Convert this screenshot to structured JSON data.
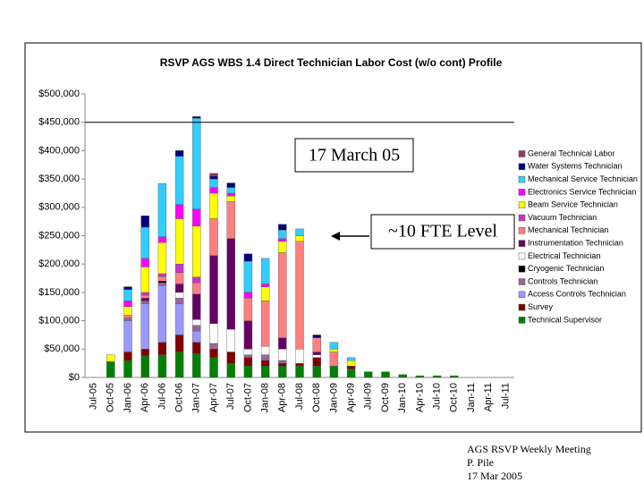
{
  "chart_data": {
    "type": "stacked_bar",
    "title": "RSVP AGS WBS 1.4 Direct Technician Labor Cost (w/o cont) Profile",
    "categories": [
      "Jul-05",
      "Oct-05",
      "Jan-06",
      "Apr-06",
      "Jul-06",
      "Oct-06",
      "Jan-07",
      "Apr-07",
      "Jul-07",
      "Oct-07",
      "Jan-08",
      "Apr-08",
      "Jul-08",
      "Oct-08",
      "Jan-09",
      "Apr-09",
      "Jul-09",
      "Oct-09",
      "Jan-10",
      "Apr-10",
      "Jul-10",
      "Oct-10",
      "Jan-11",
      "Apr-11",
      "Jul-11"
    ],
    "series": [
      {
        "name": "General Technical Labor",
        "color": "#993366",
        "values": [
          0,
          0,
          0,
          0,
          0,
          0,
          0,
          5000,
          0,
          0,
          0,
          0,
          0,
          0,
          0,
          0,
          0,
          0,
          0,
          0,
          0,
          0,
          0,
          0,
          0
        ]
      },
      {
        "name": "Water Systems Technician",
        "color": "#000080",
        "values": [
          0,
          0,
          5000,
          20000,
          0,
          10000,
          3000,
          5000,
          8000,
          13000,
          0,
          10000,
          0,
          5000,
          0,
          0,
          0,
          0,
          0,
          0,
          0,
          0,
          0,
          0,
          0
        ]
      },
      {
        "name": "Mechanical Service Technician",
        "color": "#33ccff",
        "values": [
          0,
          0,
          20000,
          55000,
          94000,
          85000,
          160000,
          15000,
          10000,
          55000,
          45000,
          15000,
          12000,
          0,
          12000,
          5000,
          0,
          0,
          0,
          0,
          0,
          0,
          0,
          0,
          0
        ]
      },
      {
        "name": "Electronics Service Technician",
        "color": "#ff00ff",
        "values": [
          0,
          0,
          10000,
          15000,
          10000,
          25000,
          30000,
          10000,
          5000,
          10000,
          5000,
          5000,
          0,
          0,
          0,
          0,
          0,
          0,
          0,
          0,
          0,
          0,
          0,
          0,
          0
        ]
      },
      {
        "name": "Beam Service Technician",
        "color": "#ffff00",
        "values": [
          0,
          12000,
          15000,
          45000,
          55000,
          80000,
          90000,
          45000,
          10000,
          0,
          25000,
          20000,
          10000,
          0,
          5000,
          10000,
          0,
          0,
          0,
          0,
          0,
          0,
          0,
          0,
          0
        ]
      },
      {
        "name": "Vacuum Technician",
        "color": "#cc33cc",
        "values": [
          0,
          0,
          0,
          5000,
          5000,
          15000,
          10000,
          0,
          0,
          0,
          0,
          0,
          0,
          0,
          0,
          0,
          0,
          0,
          0,
          0,
          0,
          0,
          0,
          0,
          0
        ]
      },
      {
        "name": "Mechanical Technician",
        "color": "#ff8080",
        "values": [
          0,
          0,
          5000,
          5000,
          8000,
          20000,
          20000,
          65000,
          65000,
          40000,
          80000,
          150000,
          190000,
          25000,
          25000,
          0,
          0,
          0,
          0,
          0,
          0,
          0,
          0,
          0,
          0
        ]
      },
      {
        "name": "Instrumentation Technician",
        "color": "#660066",
        "values": [
          0,
          0,
          0,
          5000,
          0,
          15000,
          45000,
          120000,
          160000,
          50000,
          0,
          20000,
          0,
          5000,
          0,
          0,
          0,
          0,
          0,
          0,
          0,
          0,
          0,
          0,
          0
        ]
      },
      {
        "name": "Electrical Technician",
        "color": "#ffffff",
        "values": [
          0,
          0,
          0,
          0,
          0,
          10000,
          10000,
          35000,
          40000,
          10000,
          15000,
          20000,
          25000,
          5000,
          0,
          0,
          0,
          0,
          0,
          0,
          0,
          0,
          0,
          0,
          0
        ]
      },
      {
        "name": "Cryogenic Technician",
        "color": "#000000",
        "values": [
          0,
          0,
          0,
          0,
          3000,
          0,
          0,
          0,
          0,
          0,
          0,
          0,
          0,
          0,
          0,
          0,
          0,
          0,
          0,
          0,
          0,
          0,
          0,
          0,
          0
        ]
      },
      {
        "name": "Controls Technician",
        "color": "#996699",
        "values": [
          0,
          0,
          5000,
          5000,
          5000,
          10000,
          10000,
          10000,
          0,
          5000,
          10000,
          5000,
          0,
          0,
          0,
          0,
          0,
          0,
          0,
          0,
          0,
          0,
          0,
          0,
          0
        ]
      },
      {
        "name": "Access Controls Technician",
        "color": "#9999ff",
        "values": [
          0,
          0,
          55000,
          80000,
          100000,
          55000,
          20000,
          0,
          0,
          0,
          0,
          0,
          0,
          0,
          0,
          0,
          0,
          0,
          0,
          0,
          0,
          0,
          0,
          0,
          0
        ]
      },
      {
        "name": "Survey",
        "color": "#800000",
        "values": [
          0,
          0,
          15000,
          12000,
          22000,
          30000,
          20000,
          15000,
          20000,
          15000,
          10000,
          5000,
          5000,
          15000,
          0,
          5000,
          0,
          0,
          0,
          0,
          0,
          0,
          0,
          0,
          0
        ]
      },
      {
        "name": "Technical Supervisor",
        "color": "#008000",
        "values": [
          0,
          28000,
          30000,
          38000,
          40000,
          45000,
          42000,
          35000,
          25000,
          20000,
          20000,
          20000,
          20000,
          20000,
          20000,
          15000,
          10000,
          10000,
          5000,
          3000,
          3000,
          3000,
          0,
          0,
          0
        ]
      }
    ],
    "ylim": [
      0,
      500000
    ],
    "yticks": [
      {
        "value": 0,
        "label": "$0"
      },
      {
        "value": 50000,
        "label": "$50,000"
      },
      {
        "value": 100000,
        "label": "$100,000"
      },
      {
        "value": 150000,
        "label": "$150,000"
      },
      {
        "value": 200000,
        "label": "$200,000"
      },
      {
        "value": 250000,
        "label": "$250,000"
      },
      {
        "value": 300000,
        "label": "$300,000"
      },
      {
        "value": 350000,
        "label": "$350,000"
      },
      {
        "value": 400000,
        "label": "$400,000"
      },
      {
        "value": 450000,
        "label": "$450,000"
      },
      {
        "value": 500000,
        "label": "$500,000"
      }
    ],
    "reference_line": 450000,
    "annotations": [
      "17 March 05",
      "~10  FTE Level"
    ],
    "legend": "right"
  },
  "footer": [
    "AGS RSVP Weekly Meeting",
    "P. Pile",
    "17 Mar 2005"
  ]
}
